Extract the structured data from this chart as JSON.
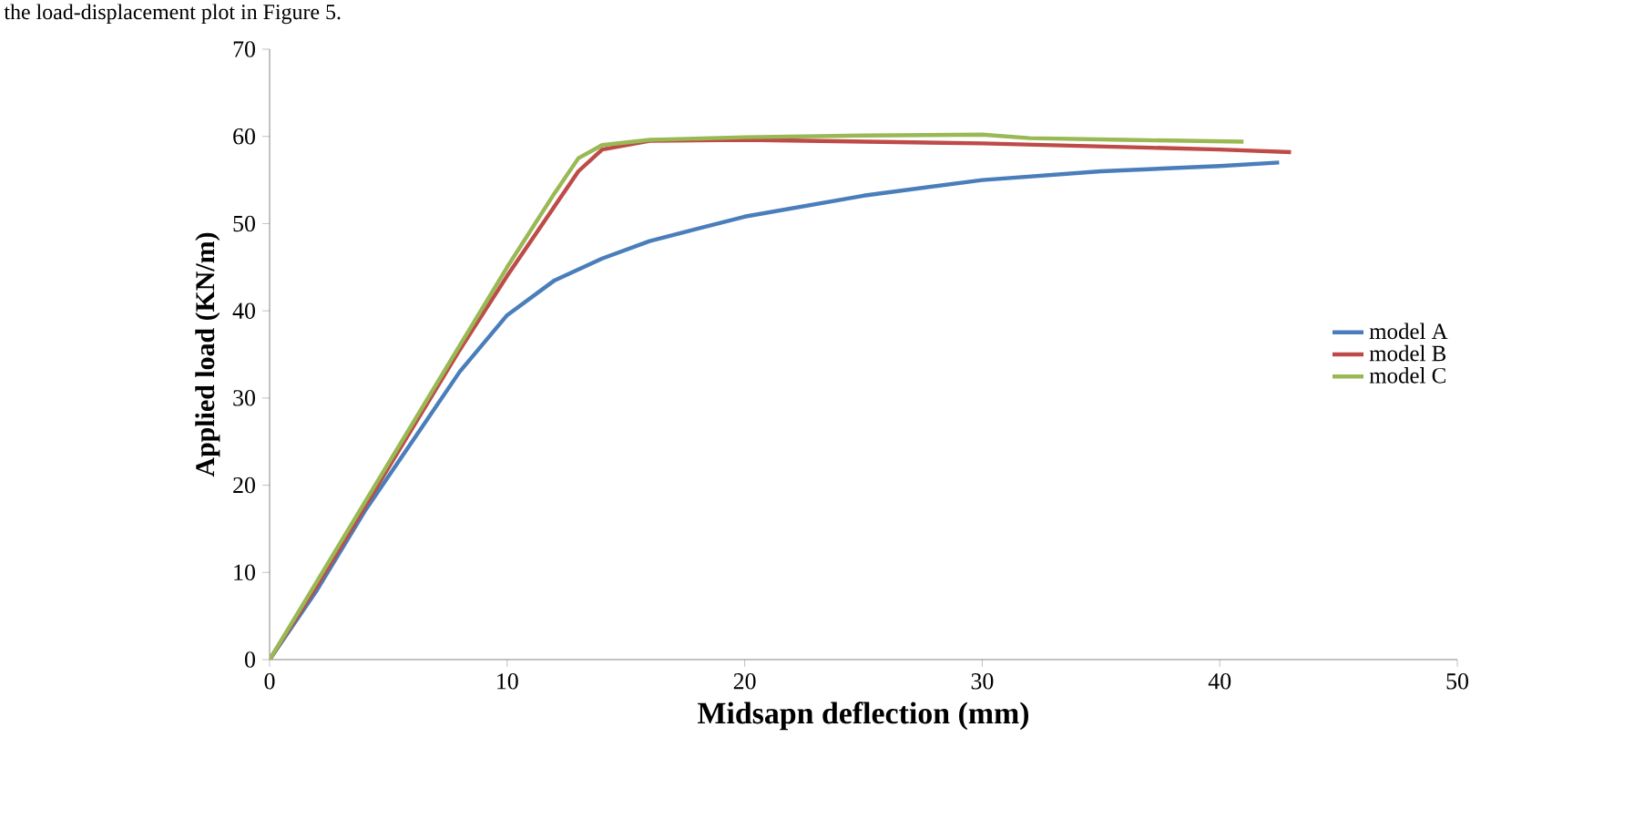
{
  "chart_data": {
    "type": "line",
    "xlabel": "Midsapn deflection (mm)",
    "ylabel": "Applied load (KN/m)",
    "annotations": [
      "the load-displacement plot in Figure 5."
    ],
    "xlim": [
      0,
      50
    ],
    "ylim": [
      0,
      70
    ],
    "xticks": [
      0,
      10,
      20,
      30,
      40,
      50
    ],
    "yticks": [
      0,
      10,
      20,
      30,
      40,
      50,
      60,
      70
    ],
    "grid": false,
    "legend": "right",
    "marker": "none",
    "line_style": "solid",
    "series": [
      {
        "name": "model A",
        "color": "#4a7ebb",
        "x": [
          0,
          2,
          4,
          6,
          8,
          10,
          12,
          14,
          16,
          20,
          25,
          30,
          35,
          40,
          42.5
        ],
        "values": [
          0,
          8,
          17,
          25,
          33,
          39.5,
          43.5,
          46,
          48,
          50.8,
          53.2,
          55,
          56,
          56.6,
          57
        ]
      },
      {
        "name": "model B",
        "color": "#be4b48",
        "x": [
          0,
          2,
          4,
          6,
          8,
          10,
          12,
          13,
          14,
          16,
          20,
          30,
          40,
          43
        ],
        "values": [
          0,
          8.5,
          17.5,
          26.5,
          35.5,
          44,
          52,
          56,
          58.5,
          59.5,
          59.6,
          59.2,
          58.5,
          58.2
        ]
      },
      {
        "name": "model C",
        "color": "#98b954",
        "x": [
          0,
          2,
          4,
          6,
          8,
          10,
          12,
          13,
          14,
          16,
          20,
          25,
          30,
          32,
          36,
          41
        ],
        "values": [
          0,
          9,
          18,
          27,
          36,
          45,
          53.5,
          57.5,
          59,
          59.6,
          59.9,
          60.1,
          60.2,
          59.8,
          59.6,
          59.4
        ]
      }
    ]
  }
}
